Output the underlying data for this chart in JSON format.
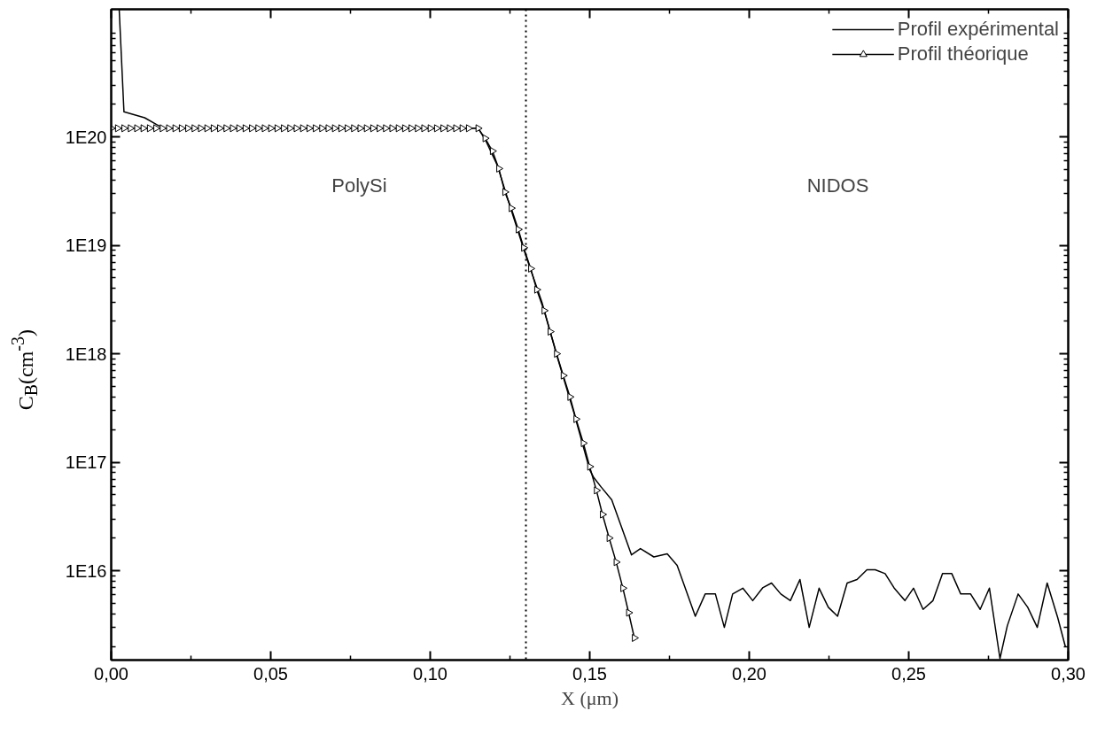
{
  "chart_data": {
    "type": "line",
    "xlabel": "X (μm)",
    "ylabel": "C$_{B}$(cm$^{-3}$)",
    "xlim": [
      0,
      0.3
    ],
    "ylim": [
      1500000000000000.0,
      1.5e+21
    ],
    "log": "y",
    "grid": false,
    "legend": "top right",
    "xticks": [
      {
        "value": 0,
        "label": "0,00"
      },
      {
        "value": 0.05,
        "label": "0,05"
      },
      {
        "value": 0.1,
        "label": "0,10"
      },
      {
        "value": 0.15,
        "label": "0,15"
      },
      {
        "value": 0.2,
        "label": "0,20"
      },
      {
        "value": 0.25,
        "label": "0,25"
      },
      {
        "value": 0.3,
        "label": "0,30"
      }
    ],
    "yticks": [
      {
        "value": 1e+16,
        "label": "1E16"
      },
      {
        "value": 1e+17,
        "label": "1E17"
      },
      {
        "value": 1e+18,
        "label": "1E18"
      },
      {
        "value": 1e+19,
        "label": "1E19"
      },
      {
        "value": 1e+20,
        "label": "1E20"
      }
    ],
    "ref_lines": [
      {
        "axis": "x",
        "value": 0.13,
        "line_style": "dotted",
        "color": "#000000"
      }
    ],
    "annotations": [
      "PolySi",
      "NIDOS"
    ],
    "series": [
      {
        "name": "Profil expérimental",
        "color": "#000000",
        "marker": "none",
        "x": [
          0.0025,
          0.004,
          0.0105,
          0.0142,
          0.0166,
          0.04,
          0.07,
          0.1,
          0.115,
          0.1172,
          0.121,
          0.125,
          0.13,
          0.135,
          0.14,
          0.145,
          0.15,
          0.1513,
          0.1536,
          0.1569,
          0.1631,
          0.1659,
          0.1701,
          0.1743,
          0.1774,
          0.1831,
          0.1862,
          0.1894,
          0.1922,
          0.1948,
          0.198,
          0.2011,
          0.2042,
          0.207,
          0.2099,
          0.2129,
          0.2159,
          0.2188,
          0.2219,
          0.2248,
          0.2277,
          0.2307,
          0.2338,
          0.2369,
          0.2395,
          0.2426,
          0.2454,
          0.2488,
          0.2515,
          0.2545,
          0.2576,
          0.2606,
          0.2635,
          0.2663,
          0.2694,
          0.2724,
          0.2753,
          0.2786,
          0.2809,
          0.2843,
          0.2873,
          0.2903,
          0.2934,
          0.2967,
          0.2991
        ],
        "values": [
          1.5e+21,
          1.7e+20,
          1.5e+20,
          1.3e+20,
          1.2e+20,
          1.2e+20,
          1.2e+20,
          1.2e+20,
          1.2e+20,
          9.5e+19,
          5.5e+19,
          2.3e+19,
          8e+18,
          3e+18,
          9e+17,
          2.9e+17,
          8.5e+16,
          7.2e+16,
          5.9e+16,
          4.5e+16,
          1.4e+16,
          1.6e+16,
          1.34e+16,
          1.43e+16,
          1.12e+16,
          3800000000000000.0,
          6100000000000000.0,
          6100000000000000.0,
          3000000000000000.0,
          6100000000000000.0,
          6900000000000000.0,
          5300000000000000.0,
          6950000000000000.0,
          7700000000000000.0,
          6100000000000000.0,
          5300000000000000.0,
          8300000000000000.0,
          3000000000000000.0,
          6900000000000000.0,
          4600000000000000.0,
          3800000000000000.0,
          7700000000000000.0,
          8300000000000000.0,
          1.02e+16,
          1.02e+16,
          9400000000000000.0,
          6950000000000000.0,
          5300000000000000.0,
          6900000000000000.0,
          4400000000000000.0,
          5300000000000000.0,
          9400000000000000.0,
          9400000000000000.0,
          6100000000000000.0,
          6100000000000000.0,
          4400000000000000.0,
          6900000000000000.0,
          1550000000000000.0,
          3100000000000000.0,
          6100000000000000.0,
          4600000000000000.0,
          3000000000000000.0,
          7700000000000000.0,
          3700000000000000.0,
          2000000000000000.0
        ]
      },
      {
        "name": "Profil théorique",
        "color": "#000000",
        "marker": "triangle",
        "x": [
          0,
          0.002,
          0.004,
          0.006,
          0.008,
          0.01,
          0.012,
          0.014,
          0.016,
          0.018,
          0.02,
          0.022,
          0.024,
          0.026,
          0.028,
          0.03,
          0.032,
          0.034,
          0.036,
          0.038,
          0.04,
          0.042,
          0.044,
          0.046,
          0.048,
          0.05,
          0.052,
          0.054,
          0.056,
          0.058,
          0.06,
          0.062,
          0.064,
          0.066,
          0.068,
          0.07,
          0.072,
          0.074,
          0.076,
          0.078,
          0.08,
          0.082,
          0.084,
          0.086,
          0.088,
          0.09,
          0.092,
          0.094,
          0.096,
          0.098,
          0.1,
          0.102,
          0.104,
          0.106,
          0.108,
          0.11,
          0.112,
          0.115,
          0.1172,
          0.1195,
          0.1215,
          0.1234,
          0.1254,
          0.1276,
          0.1293,
          0.1315,
          0.1334,
          0.1357,
          0.1376,
          0.1396,
          0.1417,
          0.1438,
          0.1457,
          0.148,
          0.15,
          0.1521,
          0.154,
          0.1561,
          0.1583,
          0.1604,
          0.1622,
          0.164
        ],
        "values": [
          1.2e+20,
          1.2e+20,
          1.2e+20,
          1.2e+20,
          1.2e+20,
          1.2e+20,
          1.2e+20,
          1.2e+20,
          1.2e+20,
          1.2e+20,
          1.2e+20,
          1.2e+20,
          1.2e+20,
          1.2e+20,
          1.2e+20,
          1.2e+20,
          1.2e+20,
          1.2e+20,
          1.2e+20,
          1.2e+20,
          1.2e+20,
          1.2e+20,
          1.2e+20,
          1.2e+20,
          1.2e+20,
          1.2e+20,
          1.2e+20,
          1.2e+20,
          1.2e+20,
          1.2e+20,
          1.2e+20,
          1.2e+20,
          1.2e+20,
          1.2e+20,
          1.2e+20,
          1.2e+20,
          1.2e+20,
          1.2e+20,
          1.2e+20,
          1.2e+20,
          1.2e+20,
          1.2e+20,
          1.2e+20,
          1.2e+20,
          1.2e+20,
          1.2e+20,
          1.2e+20,
          1.2e+20,
          1.2e+20,
          1.2e+20,
          1.2e+20,
          1.2e+20,
          1.2e+20,
          1.2e+20,
          1.2e+20,
          1.2e+20,
          1.2e+20,
          1.2e+20,
          9.7e+19,
          7.4e+19,
          5.1e+19,
          3.1e+19,
          2.2e+19,
          1.4e+19,
          9.5e+18,
          6.1e+18,
          3.9e+18,
          2.5e+18,
          1.6e+18,
          1e+18,
          6.3e+17,
          4e+17,
          2.5e+17,
          1.5e+17,
          9.1e+16,
          5.5e+16,
          3.3e+16,
          2e+16,
          1.2e+16,
          6900000000000000.0,
          4100000000000000.0,
          2400000000000000.0
        ]
      }
    ]
  }
}
